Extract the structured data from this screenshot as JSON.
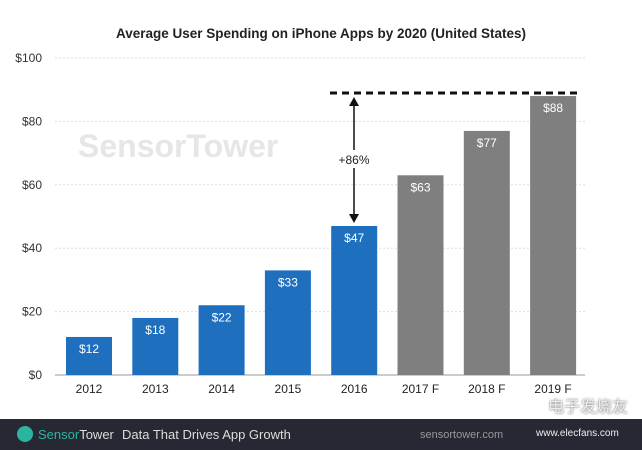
{
  "chart_data": {
    "type": "bar",
    "title": "Average User Spending on iPhone Apps by 2020 (United States)",
    "categories": [
      "2012",
      "2013",
      "2014",
      "2015",
      "2016",
      "2017 F",
      "2018 F",
      "2019 F"
    ],
    "values": [
      12,
      18,
      22,
      33,
      47,
      63,
      77,
      88
    ],
    "data_labels": [
      "$12",
      "$18",
      "$22",
      "$33",
      "$47",
      "$63",
      "$77",
      "$88"
    ],
    "forecast": [
      false,
      false,
      false,
      false,
      false,
      true,
      true,
      true
    ],
    "colors": {
      "actual": "#1f6fbf",
      "forecast": "#7f7f7f"
    },
    "ylim": [
      0,
      100
    ],
    "yticks": [
      0,
      20,
      40,
      60,
      80,
      100
    ],
    "ytick_labels": [
      "$0",
      "$20",
      "$40",
      "$60",
      "$80",
      "$100"
    ],
    "grid": true,
    "annotation": "+86%"
  },
  "watermark": "SensorTower",
  "footer": {
    "brand_a": "Sensor",
    "brand_b": "Tower",
    "tagline": "Data That Drives App Growth",
    "url": "sensortower.com",
    "overlay_text": "电子发烧友",
    "overlay_url": "www.elecfans.com"
  }
}
